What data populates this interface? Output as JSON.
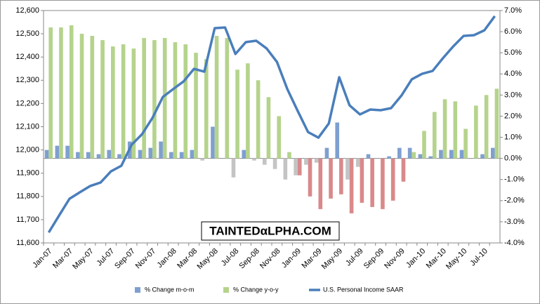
{
  "chart_data": {
    "type": "combo",
    "watermark": "TAINTEDαLPHA.COM",
    "categories": [
      "Jan-07",
      null,
      "Mar-07",
      null,
      "May-07",
      null,
      "Jul-07",
      null,
      "Sep-07",
      null,
      "Nov-07",
      null,
      "Jan-08",
      null,
      "Mar-08",
      null,
      "May-08",
      null,
      "Jul-08",
      null,
      "Sep-08",
      null,
      "Nov-08",
      null,
      "Jan-09",
      null,
      "Mar-09",
      null,
      "May-09",
      null,
      "Jul-09",
      null,
      "Sep-09",
      null,
      "Nov-09",
      null,
      "Jan-10",
      null,
      "Mar-10",
      null,
      "May-10",
      null,
      "Jul-10",
      null
    ],
    "series": [
      {
        "name": "% Change m-o-m",
        "type": "bar",
        "axis": "y2",
        "color": "#7f9fd0",
        "negative_color": "#c4c4c4",
        "values": [
          0.4,
          0.6,
          0.6,
          0.3,
          0.3,
          0.2,
          0.4,
          0.2,
          0.8,
          0.4,
          0.5,
          0.8,
          0.3,
          0.3,
          0.4,
          -0.1,
          1.5,
          0.0,
          -0.9,
          0.4,
          -0.1,
          -0.3,
          -0.5,
          -1.0,
          -0.8,
          -0.3,
          -0.2,
          0.5,
          1.7,
          -1.0,
          -0.4,
          0.2,
          0.0,
          0.1,
          0.5,
          0.5,
          0.2,
          0.1,
          0.4,
          0.4,
          0.4,
          0.0,
          0.2,
          0.5
        ]
      },
      {
        "name": "% Change y-o-y",
        "type": "bar",
        "axis": "y2",
        "color": "#b5d38c",
        "negative_color": "#d9898b",
        "values": [
          6.2,
          6.2,
          6.3,
          5.9,
          5.8,
          5.6,
          5.3,
          5.4,
          5.2,
          5.7,
          5.6,
          5.7,
          5.5,
          5.4,
          5.0,
          4.7,
          5.8,
          5.7,
          4.2,
          4.5,
          3.7,
          2.9,
          2.0,
          0.3,
          -0.8,
          -1.8,
          -2.4,
          -1.9,
          -1.7,
          -2.6,
          -2.1,
          -2.3,
          -2.4,
          -2.0,
          -1.1,
          0.3,
          1.3,
          2.2,
          2.8,
          2.7,
          1.4,
          2.5,
          3.0,
          3.3
        ]
      },
      {
        "name": "U.S. Personal Income SAAR",
        "type": "line",
        "axis": "y",
        "color": "#4a7ebb",
        "values": [
          11645,
          11718,
          11790,
          11818,
          11845,
          11860,
          11908,
          11932,
          12023,
          12068,
          12138,
          12228,
          12262,
          12295,
          12349,
          12337,
          12524,
          12527,
          12413,
          12464,
          12470,
          12437,
          12379,
          12262,
          12168,
          12077,
          12053,
          12114,
          12313,
          12192,
          12153,
          12174,
          12171,
          12180,
          12234,
          12304,
          12328,
          12340,
          12395,
          12446,
          12491,
          12494,
          12515,
          12576
        ]
      }
    ],
    "ylim": [
      11600,
      12600
    ],
    "yticks": [
      {
        "value": 11600,
        "label": "11,600"
      },
      {
        "value": 11700,
        "label": "11,700"
      },
      {
        "value": 11800,
        "label": "11,800"
      },
      {
        "value": 11900,
        "label": "11,900"
      },
      {
        "value": 12000,
        "label": "12,000"
      },
      {
        "value": 12100,
        "label": "12,100"
      },
      {
        "value": 12200,
        "label": "12,200"
      },
      {
        "value": 12300,
        "label": "12,300"
      },
      {
        "value": 12400,
        "label": "12,400"
      },
      {
        "value": 12500,
        "label": "12,500"
      },
      {
        "value": 12600,
        "label": "12,600"
      }
    ],
    "y2lim": [
      -4,
      7
    ],
    "y2ticks": [
      {
        "value": -4,
        "label": "-4.0%"
      },
      {
        "value": -3,
        "label": "-3.0%"
      },
      {
        "value": -2,
        "label": "-2.0%"
      },
      {
        "value": -1,
        "label": "-1.0%"
      },
      {
        "value": 0,
        "label": "0.0%"
      },
      {
        "value": 1,
        "label": "1.0%"
      },
      {
        "value": 2,
        "label": "2.0%"
      },
      {
        "value": 3,
        "label": "3.0%"
      },
      {
        "value": 4,
        "label": "4.0%"
      },
      {
        "value": 5,
        "label": "5.0%"
      },
      {
        "value": 6,
        "label": "6.0%"
      },
      {
        "value": 7,
        "label": "7.0%"
      }
    ],
    "legend": "bottom"
  }
}
